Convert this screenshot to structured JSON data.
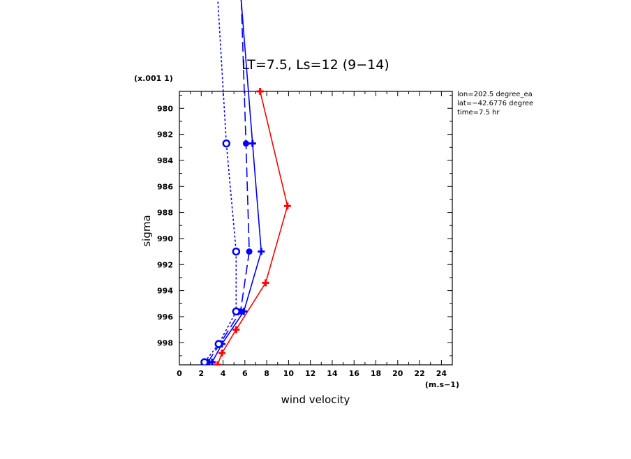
{
  "chart_data": {
    "type": "line",
    "title": "LT=7.5, Ls=12 (9−14)",
    "xlabel": "wind velocity",
    "ylabel": "sigma",
    "x_scale_label": "(m.s−1)",
    "y_scale_label": "(x.001 1)",
    "xlim": [
      0,
      25
    ],
    "ylim": [
      999.7,
      978.7
    ],
    "x_ticks": [
      0,
      2,
      4,
      6,
      8,
      10,
      12,
      14,
      16,
      18,
      20,
      22,
      24
    ],
    "y_ticks": [
      980,
      982,
      984,
      986,
      988,
      990,
      992,
      994,
      996,
      998
    ],
    "info": [
      "lon=202.5 degree_ea",
      "lat=−42.6776 degree",
      "time=7.5 hr"
    ],
    "series": [
      {
        "color": "#ff0000",
        "line_style": "solid",
        "marker": "plus",
        "points": [
          {
            "x": 3.5,
            "y": 999.7
          },
          {
            "x": 3.9,
            "y": 998.8
          },
          {
            "x": 5.2,
            "y": 997.0
          },
          {
            "x": 7.9,
            "y": 993.4
          },
          {
            "x": 9.9,
            "y": 987.5
          },
          {
            "x": 7.4,
            "y": 978.7
          }
        ]
      },
      {
        "color": "#0000ff",
        "line_style": "solid",
        "marker": "plus",
        "points": [
          {
            "x": 3.0,
            "y": 999.5
          },
          {
            "x": 3.9,
            "y": 998.1
          },
          {
            "x": 5.9,
            "y": 995.6
          },
          {
            "x": 7.5,
            "y": 991.0
          },
          {
            "x": 6.7,
            "y": 982.7
          },
          {
            "x": 5.5,
            "y": 970.0
          }
        ]
      },
      {
        "color": "#0000ff",
        "line_style": "dashed",
        "marker": "dot",
        "points": [
          {
            "x": 2.6,
            "y": 999.5
          },
          {
            "x": 3.7,
            "y": 998.1
          },
          {
            "x": 5.6,
            "y": 995.6
          },
          {
            "x": 6.4,
            "y": 991.0
          },
          {
            "x": 6.1,
            "y": 982.7
          },
          {
            "x": 5.6,
            "y": 970.0
          }
        ]
      },
      {
        "color": "#0000ff",
        "line_style": "dotted",
        "marker": "circle",
        "points": [
          {
            "x": 2.3,
            "y": 999.5
          },
          {
            "x": 3.6,
            "y": 998.1
          },
          {
            "x": 5.2,
            "y": 995.6
          },
          {
            "x": 5.2,
            "y": 991.0
          },
          {
            "x": 4.3,
            "y": 982.7
          },
          {
            "x": 3.4,
            "y": 970.0
          }
        ]
      }
    ]
  }
}
